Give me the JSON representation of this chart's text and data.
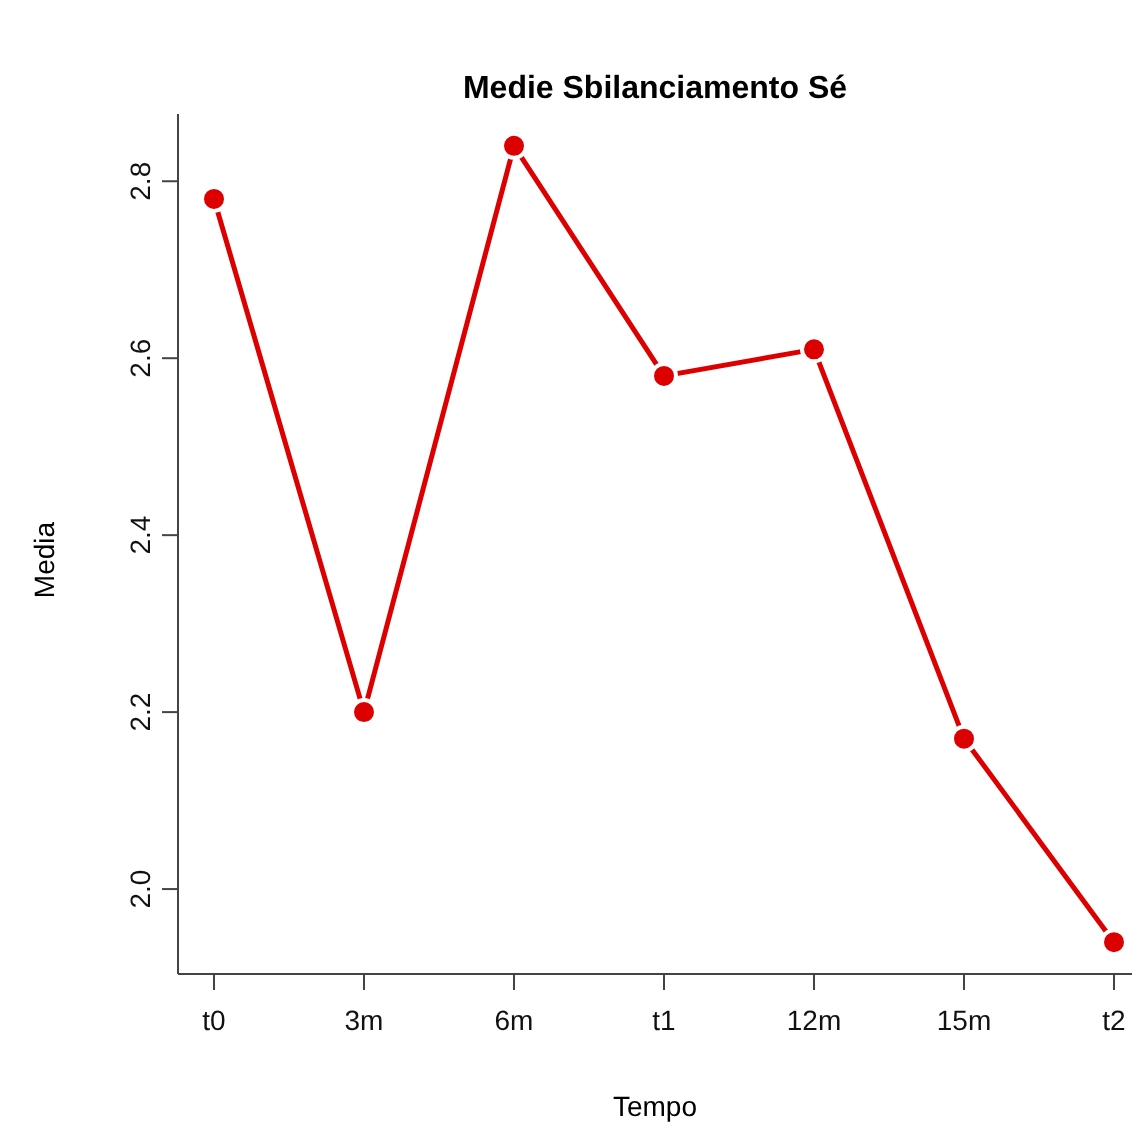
{
  "chart_data": {
    "type": "line",
    "title": "Medie Sbilanciamento Sé",
    "xlabel": "Tempo",
    "ylabel": "Media",
    "categories": [
      "t0",
      "3m",
      "6m",
      "t1",
      "12m",
      "15m",
      "t2"
    ],
    "series": [
      {
        "color": "#dd0000",
        "values": [
          2.78,
          2.2,
          2.84,
          2.58,
          2.61,
          2.17,
          1.94
        ]
      }
    ],
    "ylim": [
      1.904,
      2.876
    ],
    "yticks": [
      {
        "value": 2,
        "label": "2.0"
      },
      2.2,
      2.4,
      2.6,
      2.8
    ],
    "grid": false,
    "legend": false,
    "marker": "circle",
    "line_style": "solid"
  }
}
